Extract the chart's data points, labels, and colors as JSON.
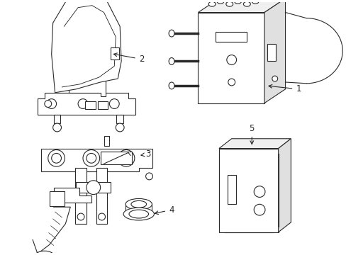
{
  "background_color": "#ffffff",
  "line_color": "#2a2a2a",
  "line_width": 0.8,
  "fig_width": 4.89,
  "fig_height": 3.6,
  "dpi": 100
}
